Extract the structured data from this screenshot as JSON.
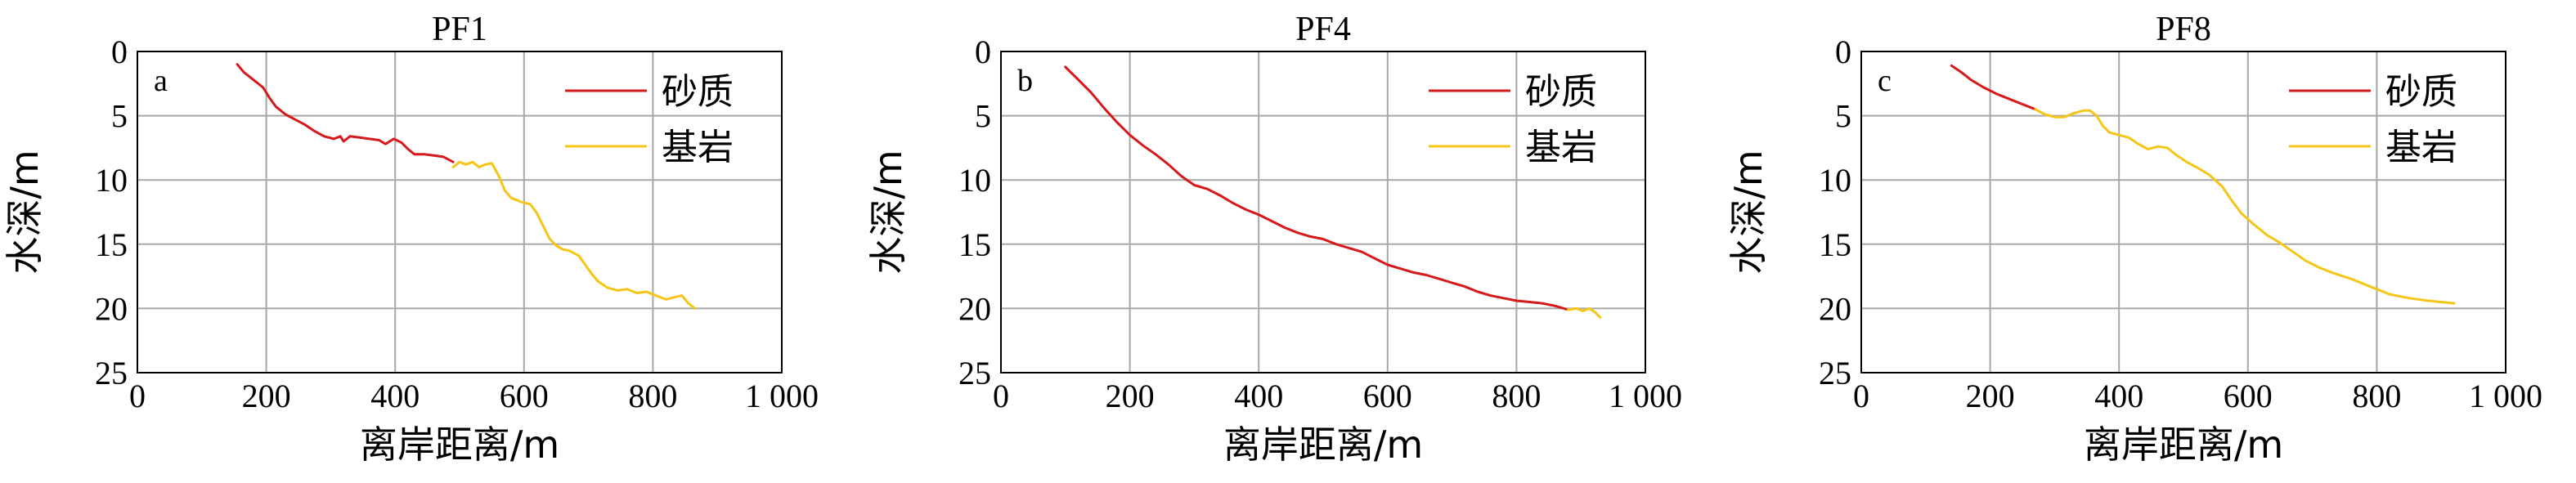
{
  "chart_data": [
    {
      "type": "line",
      "title": "PF1",
      "panel": "a",
      "xlabel": "离岸距离/m",
      "ylabel": "水深/m",
      "xlim": [
        0,
        1000
      ],
      "ylim": [
        0,
        25
      ],
      "y_inverted": true,
      "grid": true,
      "legend_position": "top-right",
      "x_tick_labels": [
        "0",
        "200",
        "400",
        "600",
        "800",
        "1 000"
      ],
      "y_tick_labels": [
        "0",
        "5",
        "10",
        "15",
        "20",
        "25"
      ],
      "series": [
        {
          "name": "砂质",
          "color": "#d7191c",
          "points": [
            [
              155,
              1.0
            ],
            [
              165,
              1.6
            ],
            [
              180,
              2.2
            ],
            [
              195,
              2.8
            ],
            [
              205,
              3.6
            ],
            [
              215,
              4.3
            ],
            [
              230,
              4.9
            ],
            [
              245,
              5.3
            ],
            [
              260,
              5.7
            ],
            [
              275,
              6.2
            ],
            [
              290,
              6.6
            ],
            [
              305,
              6.8
            ],
            [
              315,
              6.6
            ],
            [
              320,
              7.0
            ],
            [
              330,
              6.6
            ],
            [
              345,
              6.7
            ],
            [
              360,
              6.8
            ],
            [
              375,
              6.9
            ],
            [
              385,
              7.2
            ],
            [
              398,
              6.8
            ],
            [
              410,
              7.1
            ],
            [
              420,
              7.6
            ],
            [
              430,
              8.0
            ],
            [
              445,
              8.0
            ],
            [
              460,
              8.1
            ],
            [
              475,
              8.2
            ],
            [
              490,
              8.6
            ]
          ]
        },
        {
          "name": "基岩",
          "color": "#f5c518",
          "points": [
            [
              490,
              9.0
            ],
            [
              500,
              8.6
            ],
            [
              510,
              8.8
            ],
            [
              520,
              8.6
            ],
            [
              530,
              9.0
            ],
            [
              540,
              8.8
            ],
            [
              550,
              8.7
            ],
            [
              560,
              9.6
            ],
            [
              570,
              10.8
            ],
            [
              580,
              11.4
            ],
            [
              595,
              11.7
            ],
            [
              610,
              11.9
            ],
            [
              620,
              12.6
            ],
            [
              630,
              13.6
            ],
            [
              640,
              14.6
            ],
            [
              650,
              15.1
            ],
            [
              660,
              15.4
            ],
            [
              670,
              15.5
            ],
            [
              685,
              15.9
            ],
            [
              695,
              16.6
            ],
            [
              705,
              17.3
            ],
            [
              715,
              17.9
            ],
            [
              730,
              18.4
            ],
            [
              745,
              18.6
            ],
            [
              760,
              18.5
            ],
            [
              775,
              18.8
            ],
            [
              790,
              18.7
            ],
            [
              805,
              19.0
            ],
            [
              820,
              19.3
            ],
            [
              835,
              19.1
            ],
            [
              845,
              19.0
            ],
            [
              855,
              19.6
            ],
            [
              865,
              20.0
            ]
          ]
        }
      ]
    },
    {
      "type": "line",
      "title": "PF4",
      "panel": "b",
      "xlabel": "离岸距离/m",
      "ylabel": "水深/m",
      "xlim": [
        0,
        1000
      ],
      "ylim": [
        0,
        25
      ],
      "y_inverted": true,
      "grid": true,
      "legend_position": "top-right",
      "x_tick_labels": [
        "0",
        "200",
        "400",
        "600",
        "800",
        "1 000"
      ],
      "y_tick_labels": [
        "0",
        "5",
        "10",
        "15",
        "20",
        "25"
      ],
      "series": [
        {
          "name": "砂质",
          "color": "#d7191c",
          "points": [
            [
              100,
              1.2
            ],
            [
              120,
              2.2
            ],
            [
              140,
              3.2
            ],
            [
              160,
              4.4
            ],
            [
              180,
              5.5
            ],
            [
              200,
              6.5
            ],
            [
              220,
              7.3
            ],
            [
              240,
              8.0
            ],
            [
              260,
              8.8
            ],
            [
              280,
              9.7
            ],
            [
              300,
              10.4
            ],
            [
              320,
              10.7
            ],
            [
              340,
              11.2
            ],
            [
              360,
              11.8
            ],
            [
              380,
              12.3
            ],
            [
              400,
              12.7
            ],
            [
              420,
              13.2
            ],
            [
              440,
              13.7
            ],
            [
              460,
              14.1
            ],
            [
              480,
              14.4
            ],
            [
              500,
              14.6
            ],
            [
              520,
              15.0
            ],
            [
              540,
              15.3
            ],
            [
              560,
              15.6
            ],
            [
              580,
              16.1
            ],
            [
              600,
              16.6
            ],
            [
              620,
              16.9
            ],
            [
              640,
              17.2
            ],
            [
              660,
              17.4
            ],
            [
              680,
              17.7
            ],
            [
              700,
              18.0
            ],
            [
              720,
              18.3
            ],
            [
              740,
              18.7
            ],
            [
              760,
              19.0
            ],
            [
              780,
              19.2
            ],
            [
              800,
              19.4
            ],
            [
              820,
              19.5
            ],
            [
              840,
              19.6
            ],
            [
              860,
              19.8
            ],
            [
              880,
              20.1
            ]
          ]
        },
        {
          "name": "基岩",
          "color": "#f5c518",
          "points": [
            [
              880,
              20.1
            ],
            [
              893,
              20.0
            ],
            [
              903,
              20.2
            ],
            [
              913,
              20.0
            ],
            [
              922,
              20.3
            ],
            [
              930,
              20.7
            ]
          ]
        }
      ]
    },
    {
      "type": "line",
      "title": "PF8",
      "panel": "c",
      "xlabel": "离岸距离/m",
      "ylabel": "水深/m",
      "xlim": [
        0,
        1000
      ],
      "ylim": [
        0,
        25
      ],
      "y_inverted": true,
      "grid": true,
      "legend_position": "top-right",
      "x_tick_labels": [
        "0",
        "200",
        "400",
        "600",
        "800",
        "1 000"
      ],
      "y_tick_labels": [
        "0",
        "5",
        "10",
        "15",
        "20",
        "25"
      ],
      "series": [
        {
          "name": "砂质",
          "color": "#d7191c",
          "points": [
            [
              140,
              1.1
            ],
            [
              155,
              1.6
            ],
            [
              170,
              2.2
            ],
            [
              190,
              2.8
            ],
            [
              210,
              3.3
            ],
            [
              230,
              3.7
            ],
            [
              250,
              4.1
            ],
            [
              270,
              4.5
            ]
          ]
        },
        {
          "name": "基岩",
          "color": "#f5c518",
          "points": [
            [
              270,
              4.5
            ],
            [
              285,
              4.9
            ],
            [
              300,
              5.1
            ],
            [
              315,
              5.1
            ],
            [
              330,
              4.8
            ],
            [
              345,
              4.6
            ],
            [
              355,
              4.6
            ],
            [
              365,
              5.0
            ],
            [
              375,
              5.8
            ],
            [
              385,
              6.3
            ],
            [
              400,
              6.5
            ],
            [
              415,
              6.7
            ],
            [
              430,
              7.2
            ],
            [
              445,
              7.6
            ],
            [
              460,
              7.4
            ],
            [
              475,
              7.5
            ],
            [
              490,
              8.1
            ],
            [
              505,
              8.6
            ],
            [
              520,
              9.0
            ],
            [
              540,
              9.6
            ],
            [
              560,
              10.5
            ],
            [
              575,
              11.6
            ],
            [
              590,
              12.6
            ],
            [
              610,
              13.5
            ],
            [
              630,
              14.3
            ],
            [
              650,
              14.9
            ],
            [
              670,
              15.6
            ],
            [
              690,
              16.3
            ],
            [
              710,
              16.8
            ],
            [
              730,
              17.2
            ],
            [
              760,
              17.7
            ],
            [
              790,
              18.3
            ],
            [
              820,
              18.9
            ],
            [
              850,
              19.2
            ],
            [
              880,
              19.4
            ],
            [
              920,
              19.6
            ]
          ]
        }
      ]
    }
  ]
}
